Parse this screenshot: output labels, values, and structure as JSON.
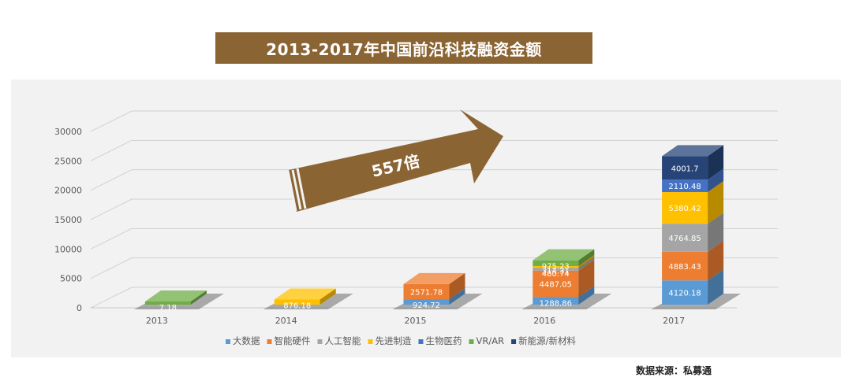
{
  "title": "2013-2017年中国前沿科技融资金额",
  "source": "数据来源：私募通",
  "arrow_label": "557倍",
  "chart_data": {
    "type": "bar",
    "stacked": true,
    "three_d": true,
    "title": "2013-2017年中国前沿科技融资金额",
    "categories": [
      "2013",
      "2014",
      "2015",
      "2016",
      "2017"
    ],
    "y_ticks": [
      "0",
      "5000",
      "10000",
      "15000",
      "20000",
      "25000",
      "30000"
    ],
    "ylim": [
      0,
      30000
    ],
    "grid": true,
    "legend_position": "bottom",
    "series": [
      {
        "name": "大数据",
        "color": "#5b9bd5",
        "values": [
          0,
          0,
          924.72,
          1288.86,
          4120.18
        ],
        "labels": [
          "",
          "",
          "924.72",
          "1288.86",
          "4120.18"
        ]
      },
      {
        "name": "智能硬件",
        "color": "#ed7d31",
        "values": [
          0,
          0,
          2571.78,
          4487.05,
          4883.43
        ],
        "labels": [
          "",
          "",
          "2571.78",
          "4487.05",
          "4883.43"
        ]
      },
      {
        "name": "人工智能",
        "color": "#a5a5a5",
        "values": [
          0,
          0,
          0,
          480.74,
          4764.85
        ],
        "labels": [
          "",
          "",
          "",
          "480.74",
          "4764.85"
        ]
      },
      {
        "name": "先进制造",
        "color": "#ffc000",
        "values": [
          0,
          876.18,
          0,
          314.31,
          5380.42
        ],
        "labels": [
          "",
          "876.18",
          "",
          "314.31",
          "5380.42"
        ]
      },
      {
        "name": "生物医药",
        "color": "#4472c4",
        "values": [
          0,
          0,
          0,
          0,
          2110.48
        ],
        "labels": [
          "",
          "",
          "",
          "",
          "2110.48"
        ]
      },
      {
        "name": "VR/AR",
        "color": "#70ad47",
        "values": [
          7.18,
          0,
          0,
          975.23,
          0
        ],
        "labels": [
          "7.18",
          "",
          "",
          "975.23",
          ""
        ]
      },
      {
        "name": "新能源/新材料",
        "color": "#264478",
        "values": [
          0,
          0,
          0,
          0,
          4001.7
        ],
        "labels": [
          "",
          "",
          "",
          "",
          "4001.7"
        ]
      }
    ]
  }
}
